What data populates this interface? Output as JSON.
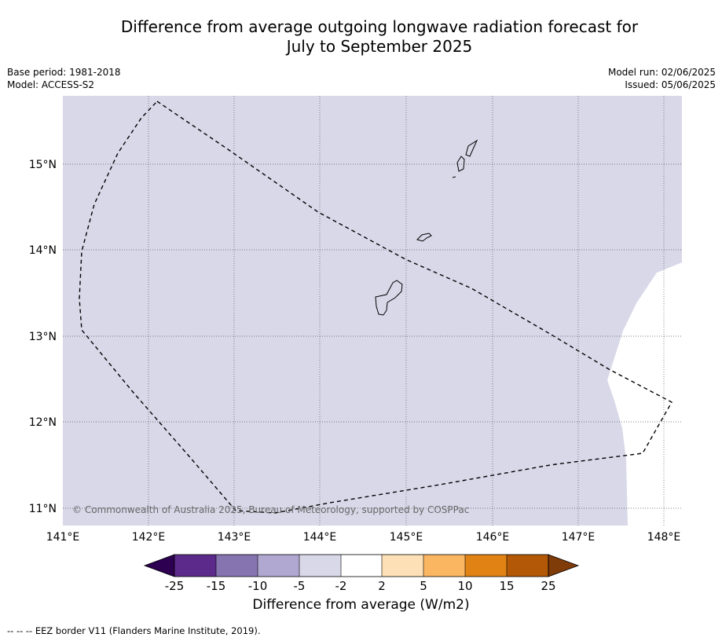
{
  "title_line1": "Difference from average outgoing longwave radiation forecast for",
  "title_line2": "July to September 2025",
  "meta": {
    "base_period": "Base period: 1981-2018",
    "model": "Model: ACCESS-S2",
    "model_run": "Model run: 02/06/2025",
    "issued": "Issued: 05/06/2025"
  },
  "map": {
    "lat_labels": [
      "15°N",
      "14°N",
      "13°N",
      "12°N",
      "11°N"
    ],
    "lon_labels": [
      "141°E",
      "142°E",
      "143°E",
      "144°E",
      "145°E",
      "146°E",
      "147°E",
      "148°E"
    ],
    "copyright": "© Commonwealth of Australia 2025, Bureau of Meteorology, supported by COSPPac",
    "fill_color": "#d8d8e9",
    "land_outline_color": "#000000"
  },
  "colorbar": {
    "tick_labels": [
      "-25",
      "-15",
      "-10",
      "-5",
      "-2",
      "2",
      "5",
      "10",
      "15",
      "25"
    ],
    "colors": [
      "#2d0052",
      "#5c2a8a",
      "#8674b0",
      "#b0a8d1",
      "#d8d8e9",
      "#ffffff",
      "#fde0b6",
      "#fbb662",
      "#e08214",
      "#b35806",
      "#7f3b08"
    ],
    "label": "Difference from average (W/m2)"
  },
  "footer": "--  --  -- EEZ border V11 (Flanders Marine Institute, 2019)."
}
